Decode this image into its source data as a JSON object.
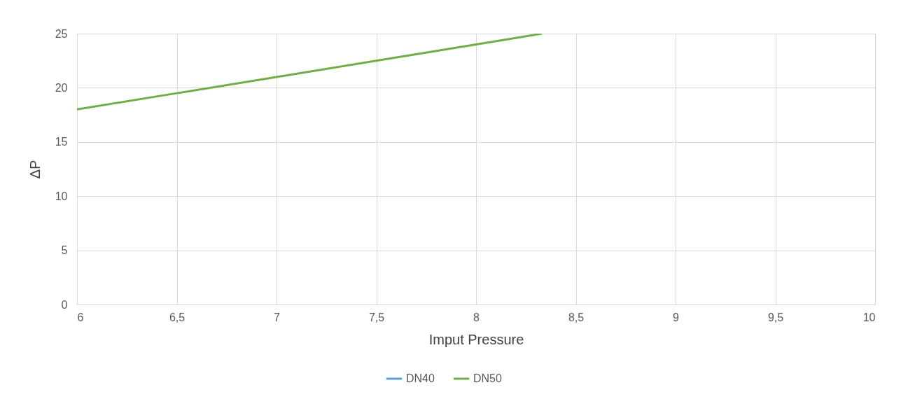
{
  "chart_data": {
    "type": "line",
    "xlabel": "Imput Pressure",
    "ylabel": "ΔP",
    "xlim": [
      6,
      10
    ],
    "ylim": [
      0,
      25
    ],
    "xticks": [
      6,
      {
        "value": 6.5,
        "label": "6,5"
      },
      7,
      {
        "value": 7.5,
        "label": "7,5"
      },
      8,
      {
        "value": 8.5,
        "label": "8,5"
      },
      9,
      {
        "value": 9.5,
        "label": "9,5"
      },
      10
    ],
    "yticks": [
      0,
      5,
      10,
      15,
      20,
      25
    ],
    "grid": true,
    "legend": "bottom",
    "line_style": "solid",
    "marker": "none",
    "series": [
      {
        "name": "DN40",
        "color": "#5b9bd5"
      },
      {
        "name": "DN50",
        "color": "#70ad47",
        "x": [
          6,
          6.5,
          7,
          7.5,
          8,
          8.33
        ],
        "values": [
          18,
          19.5,
          21,
          22.5,
          24,
          25
        ]
      }
    ]
  }
}
